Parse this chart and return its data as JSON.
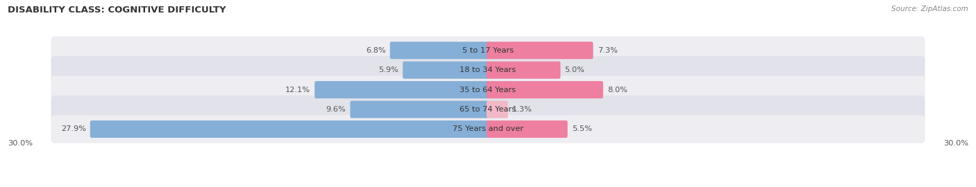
{
  "title": "DISABILITY CLASS: COGNITIVE DIFFICULTY",
  "source": "Source: ZipAtlas.com",
  "categories": [
    "5 to 17 Years",
    "18 to 34 Years",
    "35 to 64 Years",
    "65 to 74 Years",
    "75 Years and over"
  ],
  "male_values": [
    6.8,
    5.9,
    12.1,
    9.6,
    27.9
  ],
  "female_values": [
    7.3,
    5.0,
    8.0,
    1.3,
    5.5
  ],
  "male_color": "#85afd6",
  "female_color": "#ee7fa0",
  "female_light_color": "#f2b8c8",
  "row_bg_even": "#ededf2",
  "row_bg_odd": "#e2e2ea",
  "max_val": 30.0,
  "title_fontsize": 9.5,
  "label_fontsize": 8.2,
  "tick_fontsize": 8.2,
  "value_color": "#555555",
  "title_color": "#333333",
  "source_color": "#888888",
  "cat_label_color": "#333333"
}
